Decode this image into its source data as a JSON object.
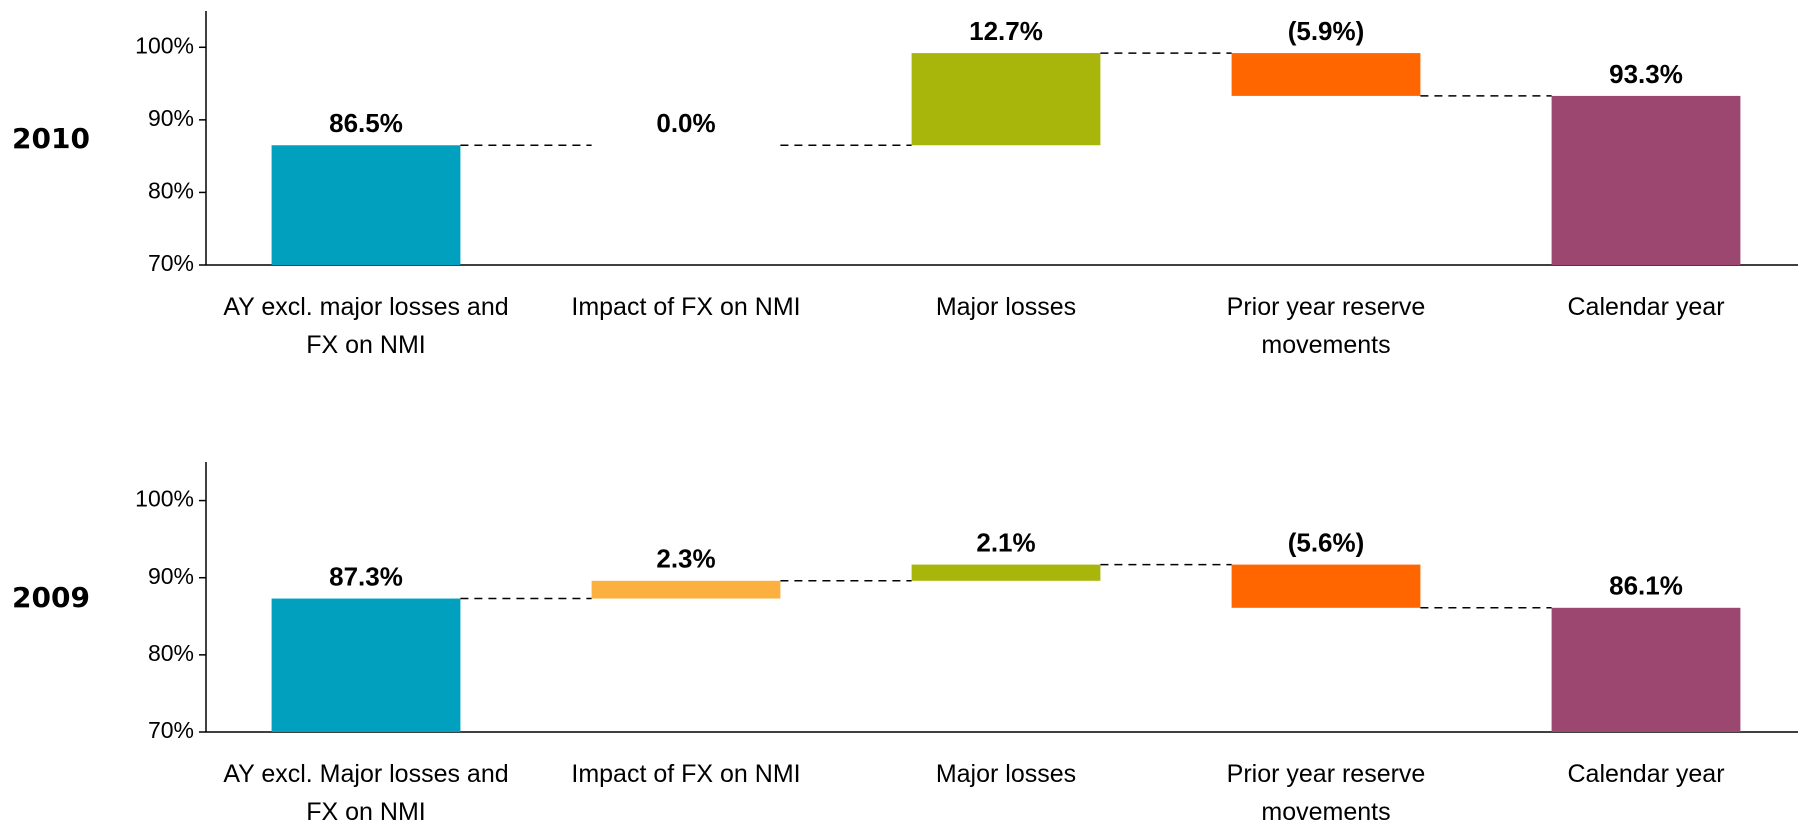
{
  "chart_data": [
    {
      "type": "waterfall",
      "title": "2010",
      "categories": [
        "AY excl. major losses and FX on NMI",
        "Impact of FX on NMI",
        "Major losses",
        "Prior year reserve movements",
        "Calendar year"
      ],
      "values": [
        86.5,
        0.0,
        12.7,
        -5.9,
        93.3
      ],
      "value_labels": [
        "86.5%",
        "0.0%",
        "12.7%",
        "(5.9%)",
        "93.3%"
      ],
      "colors": [
        "#00a0be",
        "#fbb040",
        "#a8b50a",
        "#ff6600",
        "#9c4770"
      ],
      "ylim": [
        70,
        105
      ],
      "yticks": [
        {
          "value": 70,
          "label": "70%"
        },
        {
          "value": 80,
          "label": "80%"
        },
        {
          "value": 90,
          "label": "90%"
        },
        {
          "value": 100,
          "label": "100%"
        }
      ]
    },
    {
      "type": "waterfall",
      "title": "2009",
      "categories": [
        "AY excl. Major losses and FX on NMI",
        "Impact of FX on NMI",
        "Major losses",
        "Prior year reserve movements",
        "Calendar year"
      ],
      "values": [
        87.3,
        2.3,
        2.1,
        -5.6,
        86.1
      ],
      "value_labels": [
        "87.3%",
        "2.3%",
        "2.1%",
        "(5.6%)",
        "86.1%"
      ],
      "colors": [
        "#00a0be",
        "#fbb040",
        "#a8b50a",
        "#ff6600",
        "#9c4770"
      ],
      "ylim": [
        70,
        105
      ],
      "yticks": [
        {
          "value": 70,
          "label": "70%"
        },
        {
          "value": 80,
          "label": "80%"
        },
        {
          "value": 90,
          "label": "90%"
        },
        {
          "value": 100,
          "label": "100%"
        }
      ]
    }
  ]
}
